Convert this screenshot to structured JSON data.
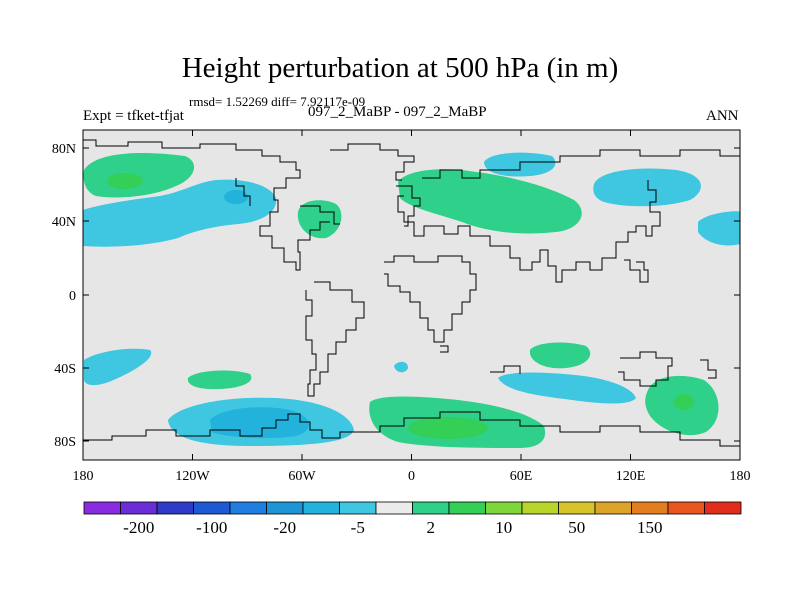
{
  "title": "Height perturbation at 500 hPa (in m)",
  "stats": "rmsd= 1.52269 diff= 7.92117e-09",
  "left_label": "Expt = tfket-tfjat",
  "center_label": "097_2_MaBP - 097_2_MaBP",
  "right_label": "ANN",
  "map": {
    "background": "#e6e6e6",
    "lat_ticks": [
      "80N",
      "40N",
      "0",
      "40S",
      "80S"
    ],
    "lon_ticks": [
      "180",
      "120W",
      "60W",
      "0",
      "60E",
      "120E",
      "180"
    ]
  },
  "colorbar": {
    "colors": [
      "#8a2be2",
      "#6a2dd8",
      "#2f3ac9",
      "#1e58d4",
      "#1f7ee0",
      "#1f95d8",
      "#22b2dc",
      "#3fc6e0",
      "#ebebeb",
      "#2fd08a",
      "#33cf56",
      "#7fd63a",
      "#b8d52c",
      "#d6c42a",
      "#dca52a",
      "#e37e20",
      "#e8551d",
      "#e22d1c"
    ],
    "labels": [
      "-200",
      "-100",
      "-20",
      "-5",
      "2",
      "10",
      "50",
      "150"
    ]
  }
}
